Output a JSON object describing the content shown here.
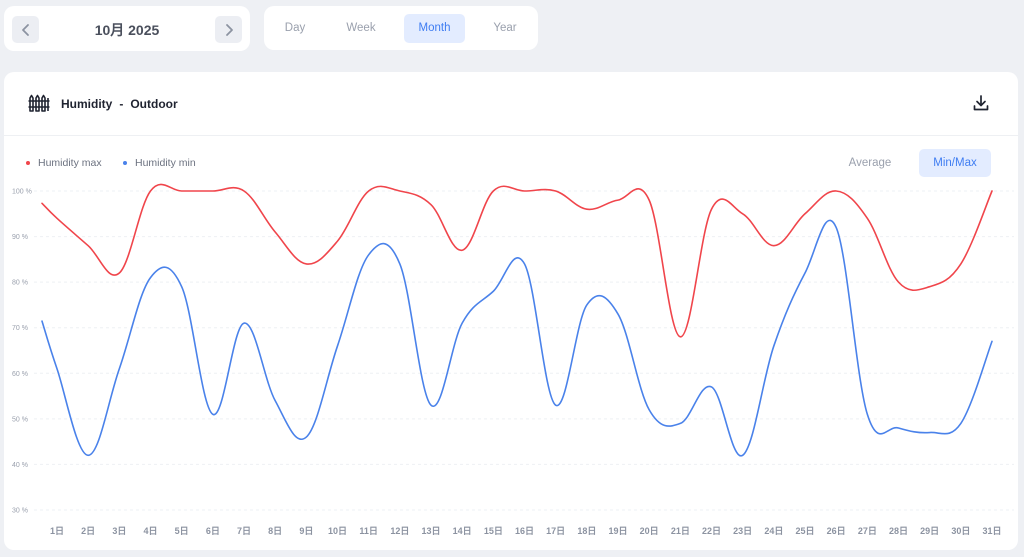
{
  "nav": {
    "month_label": "10月 2025",
    "prev_icon": "chevron-left-icon",
    "next_icon": "chevron-right-icon"
  },
  "range_tabs": [
    {
      "label": "Day",
      "active": false
    },
    {
      "label": "Week",
      "active": false
    },
    {
      "label": "Month",
      "active": true
    },
    {
      "label": "Year",
      "active": false
    }
  ],
  "card": {
    "icon": "fence-icon",
    "title_metric": "Humidity",
    "title_separator": "-",
    "title_location": "Outdoor",
    "download_icon": "download-icon"
  },
  "mode_buttons": [
    {
      "label": "Average",
      "active": false
    },
    {
      "label": "Min/Max",
      "active": true
    }
  ],
  "colors": {
    "max": "#f0454b",
    "min": "#4a82ea",
    "accent": "#3f7df2"
  },
  "chart_data": {
    "type": "line",
    "x": [
      "1日",
      "2日",
      "3日",
      "4日",
      "5日",
      "6日",
      "7日",
      "8日",
      "9日",
      "10日",
      "11日",
      "12日",
      "13日",
      "14日",
      "15日",
      "16日",
      "17日",
      "18日",
      "19日",
      "20日",
      "21日",
      "22日",
      "23日",
      "24日",
      "25日",
      "26日",
      "27日",
      "28日",
      "29日",
      "30日",
      "31日"
    ],
    "y_ticks": [
      "100 %",
      "90 %",
      "80 %",
      "70 %",
      "60 %",
      "50 %",
      "40 %",
      "30 %"
    ],
    "ylim": [
      30,
      100
    ],
    "grid": true,
    "legend_position": "top-left",
    "series": [
      {
        "name": "Humidity max",
        "color": "#f0454b",
        "values": [
          94,
          88,
          82,
          100,
          100,
          100,
          100,
          91,
          84,
          89,
          100,
          100,
          97,
          87,
          100,
          100,
          100,
          96,
          98,
          98,
          68,
          96,
          95,
          88,
          95,
          100,
          94,
          80,
          79,
          84,
          100
        ]
      },
      {
        "name": "Humidity min",
        "color": "#4a82ea",
        "values": [
          61,
          42,
          61,
          81,
          79,
          51,
          71,
          54,
          46,
          66,
          86,
          84,
          53,
          71,
          78,
          84,
          53,
          75,
          73,
          52,
          49,
          57,
          42,
          66,
          82,
          92,
          51,
          48,
          47,
          49,
          67
        ]
      }
    ]
  }
}
